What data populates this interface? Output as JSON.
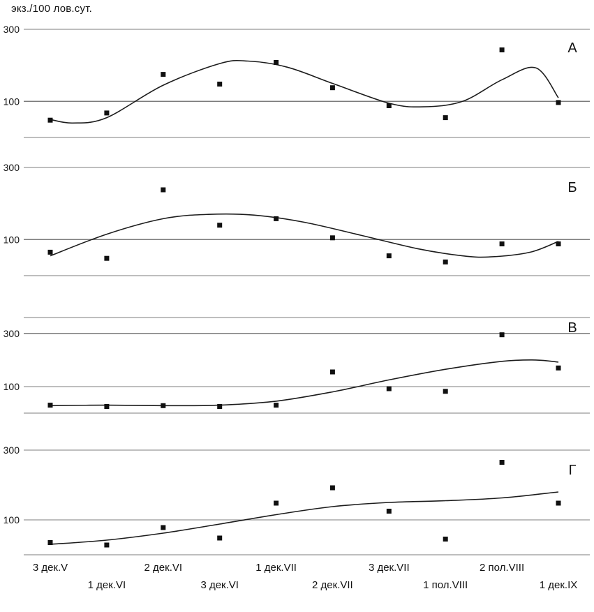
{
  "chart_data": {
    "type": "scatter",
    "ylabel": "экз./100 лов.сут.",
    "categories": [
      "3 дек.V",
      "1 дек.VI",
      "2 дек.VI",
      "3 дек.VI",
      "1 дек.VII",
      "2 дек.VII",
      "3 дек.VII",
      "1 пол.VIII",
      "2 пол.VIII",
      "1 дек.IX"
    ],
    "x_label_rows": {
      "top": [
        0,
        2,
        4,
        6,
        8
      ],
      "bottom": [
        1,
        3,
        5,
        7,
        9
      ]
    },
    "yticks": [
      300,
      100
    ],
    "grid": "horizontal",
    "legend": "none",
    "panels": [
      {
        "label": "А",
        "ylim": [
          0,
          300
        ],
        "gridlines": [
          300,
          100
        ],
        "values": [
          48,
          68,
          175,
          148,
          208,
          138,
          88,
          55,
          243,
          97
        ],
        "trend": [
          [
            0,
            50
          ],
          [
            0.4,
            40
          ],
          [
            1,
            55
          ],
          [
            2,
            145
          ],
          [
            3,
            205
          ],
          [
            3.5,
            212
          ],
          [
            4.2,
            195
          ],
          [
            5,
            150
          ],
          [
            6,
            95
          ],
          [
            6.6,
            85
          ],
          [
            7.3,
            100
          ],
          [
            8,
            160
          ],
          [
            8.6,
            193
          ],
          [
            9,
            110
          ]
        ]
      },
      {
        "label": "Б",
        "ylim": [
          0,
          300
        ],
        "gridlines": [
          300,
          100
        ],
        "values": [
          65,
          48,
          238,
          140,
          158,
          105,
          55,
          38,
          88,
          88
        ],
        "trend": [
          [
            0,
            55
          ],
          [
            1,
            115
          ],
          [
            2,
            158
          ],
          [
            2.8,
            170
          ],
          [
            3.6,
            168
          ],
          [
            4.5,
            148
          ],
          [
            5.5,
            112
          ],
          [
            6.5,
            75
          ],
          [
            7.3,
            55
          ],
          [
            7.8,
            52
          ],
          [
            8.5,
            65
          ],
          [
            9,
            95
          ]
        ]
      },
      {
        "label": "В",
        "ylim": [
          0,
          360
        ],
        "gridlines": [
          360,
          300,
          100
        ],
        "values": [
          30,
          25,
          28,
          25,
          30,
          155,
          92,
          82,
          295,
          170
        ],
        "trend": [
          [
            0,
            28
          ],
          [
            1,
            30
          ],
          [
            2,
            28
          ],
          [
            3,
            30
          ],
          [
            4,
            45
          ],
          [
            5,
            80
          ],
          [
            6,
            125
          ],
          [
            7,
            165
          ],
          [
            8,
            195
          ],
          [
            8.6,
            200
          ],
          [
            9,
            192
          ]
        ]
      },
      {
        "label": "Г",
        "ylim": [
          0,
          300
        ],
        "gridlines": [
          300,
          100
        ],
        "values": [
          35,
          28,
          78,
          48,
          148,
          192,
          125,
          45,
          265,
          148
        ],
        "trend": [
          [
            0,
            30
          ],
          [
            1,
            42
          ],
          [
            2,
            62
          ],
          [
            3,
            88
          ],
          [
            4,
            115
          ],
          [
            5,
            138
          ],
          [
            6,
            150
          ],
          [
            7,
            155
          ],
          [
            8,
            163
          ],
          [
            9,
            180
          ]
        ]
      }
    ]
  },
  "colors": {
    "background": "#ffffff",
    "grid": "#7c7c7c",
    "curve": "#1c1c1c",
    "marker": "#101010",
    "text": "#111111"
  }
}
